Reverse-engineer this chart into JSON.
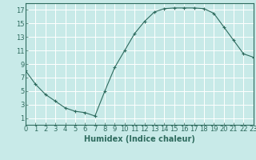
{
  "x": [
    0,
    1,
    2,
    3,
    4,
    5,
    6,
    7,
    8,
    9,
    10,
    11,
    12,
    13,
    14,
    15,
    16,
    17,
    18,
    19,
    20,
    21,
    22,
    23
  ],
  "y": [
    8,
    6,
    4.5,
    3.5,
    2.5,
    2,
    1.8,
    1.3,
    5,
    8.5,
    11,
    13.5,
    15.3,
    16.7,
    17.2,
    17.3,
    17.3,
    17.3,
    17.2,
    16.5,
    14.5,
    12.5,
    10.5,
    10
  ],
  "line_color": "#2e6b5e",
  "marker": "+",
  "marker_size": 3,
  "background_color": "#c8eae8",
  "grid_color": "#b0d8d4",
  "xlabel": "Humidex (Indice chaleur)",
  "xlim": [
    0,
    23
  ],
  "ylim": [
    0,
    18
  ],
  "xticks": [
    0,
    1,
    2,
    3,
    4,
    5,
    6,
    7,
    8,
    9,
    10,
    11,
    12,
    13,
    14,
    15,
    16,
    17,
    18,
    19,
    20,
    21,
    22,
    23
  ],
  "yticks": [
    1,
    3,
    5,
    7,
    9,
    11,
    13,
    15,
    17
  ],
  "tick_color": "#2e6b5e",
  "label_fontsize": 7,
  "tick_fontsize": 6,
  "spine_color": "#2e6b5e"
}
